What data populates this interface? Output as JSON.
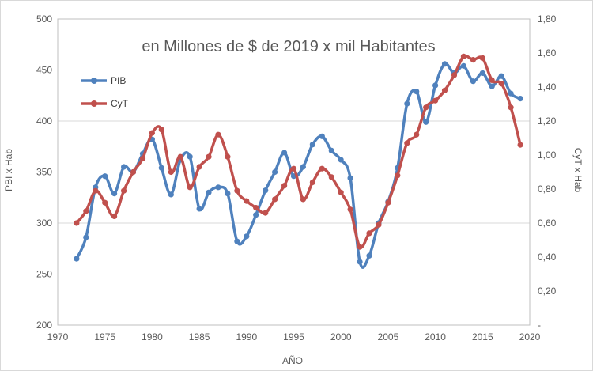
{
  "chart_data": {
    "type": "line",
    "title": "en Millones de $ de 2019 x mil Habitantes",
    "xlabel": "AÑO",
    "ylabel_left": "PBI x Hab",
    "ylabel_right": "CyT x Hab",
    "xlim": [
      1970,
      2020
    ],
    "ylim_left": [
      200,
      500
    ],
    "ylim_right": [
      0,
      1.8
    ],
    "x_ticks": [
      "1970",
      "1975",
      "1980",
      "1985",
      "1990",
      "1995",
      "2000",
      "2005",
      "2010",
      "2015",
      "2020"
    ],
    "y_left_ticks": [
      "200",
      "250",
      "300",
      "350",
      "400",
      "450",
      "500"
    ],
    "y_right_ticks": [
      "-",
      "0,20",
      "0,40",
      "0,60",
      "0,80",
      "1,00",
      "1,20",
      "1,40",
      "1,60",
      "1,80"
    ],
    "grid": "horizontal",
    "legend_position": "top-left",
    "series": [
      {
        "name": "PIB",
        "axis": "left",
        "color": "#4f81bd",
        "x": [
          1972,
          1973,
          1974,
          1975,
          1976,
          1977,
          1978,
          1979,
          1980,
          1981,
          1982,
          1983,
          1984,
          1985,
          1986,
          1987,
          1988,
          1989,
          1990,
          1991,
          1992,
          1993,
          1994,
          1995,
          1996,
          1997,
          1998,
          1999,
          2000,
          2001,
          2002,
          2003,
          2004,
          2005,
          2006,
          2007,
          2008,
          2009,
          2010,
          2011,
          2012,
          2013,
          2014,
          2015,
          2016,
          2017,
          2018,
          2019
        ],
        "values": [
          265,
          286,
          335,
          346,
          329,
          355,
          350,
          368,
          382,
          354,
          328,
          362,
          365,
          314,
          330,
          335,
          329,
          282,
          287,
          308,
          332,
          350,
          369,
          346,
          355,
          377,
          385,
          371,
          362,
          344,
          262,
          268,
          300,
          321,
          354,
          417,
          429,
          399,
          435,
          456,
          447,
          454,
          439,
          447,
          434,
          444,
          427,
          422
        ]
      },
      {
        "name": "CyT",
        "axis": "right",
        "color": "#c0504d",
        "x": [
          1972,
          1973,
          1974,
          1975,
          1976,
          1977,
          1978,
          1979,
          1980,
          1981,
          1982,
          1983,
          1984,
          1985,
          1986,
          1987,
          1988,
          1989,
          1990,
          1991,
          1992,
          1993,
          1994,
          1995,
          1996,
          1997,
          1998,
          1999,
          2000,
          2001,
          2002,
          2003,
          2004,
          2005,
          2006,
          2007,
          2008,
          2009,
          2010,
          2011,
          2012,
          2013,
          2014,
          2015,
          2016,
          2017,
          2018,
          2019
        ],
        "values": [
          0.6,
          0.67,
          0.79,
          0.72,
          0.64,
          0.79,
          0.9,
          0.98,
          1.13,
          1.15,
          0.9,
          0.99,
          0.81,
          0.93,
          0.99,
          1.12,
          0.99,
          0.79,
          0.73,
          0.69,
          0.66,
          0.74,
          0.82,
          0.92,
          0.74,
          0.84,
          0.92,
          0.87,
          0.78,
          0.68,
          0.46,
          0.54,
          0.59,
          0.72,
          0.88,
          1.07,
          1.12,
          1.28,
          1.32,
          1.38,
          1.47,
          1.58,
          1.56,
          1.57,
          1.44,
          1.42,
          1.28,
          1.06
        ]
      }
    ]
  }
}
